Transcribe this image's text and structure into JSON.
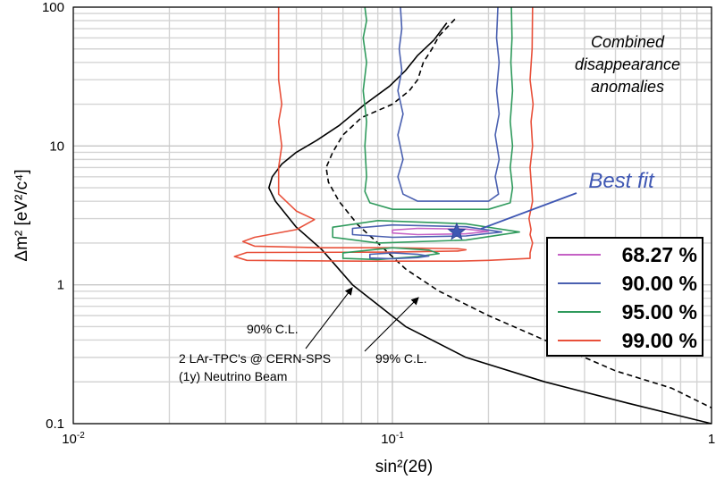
{
  "chart_data": {
    "type": "line",
    "xlabel": "sin²(2θ)",
    "ylabel": "Δm² [eV²/c⁴]",
    "x_scale": "log",
    "y_scale": "log",
    "xlim": [
      0.01,
      1
    ],
    "ylim": [
      0.1,
      100
    ],
    "grid": true,
    "x_ticks": [
      {
        "value": 0.01,
        "base": "10",
        "exp": "-2"
      },
      {
        "value": 0.1,
        "base": "10",
        "exp": "-1"
      },
      {
        "value": 1,
        "base": "1",
        "exp": ""
      }
    ],
    "y_ticks": [
      {
        "value": 0.1,
        "label": "0.1"
      },
      {
        "value": 1,
        "label": "1"
      },
      {
        "value": 10,
        "label": "10"
      },
      {
        "value": 100,
        "label": "100"
      }
    ],
    "annotations": {
      "combined": [
        "Combined",
        "disappearance",
        "anomalies"
      ],
      "best_fit": "Best fit",
      "cl90": "90% C.L.",
      "cl99": "99% C.L.",
      "exp": [
        "2 LAr-TPC's @ CERN-SPS",
        "(1y) Neutrino Beam"
      ]
    },
    "best_fit_point": {
      "x": 0.159,
      "y": 2.4
    },
    "legend": {
      "position": "right",
      "entries": [
        {
          "label": "68.27 %",
          "color": "#c561c5"
        },
        {
          "label": "90.00 %",
          "color": "#4a60b0"
        },
        {
          "label": "95.00 %",
          "color": "#2f9a5c"
        },
        {
          "label": "99.00 %",
          "color": "#e8503a"
        }
      ]
    },
    "series": [
      {
        "key": "sens90",
        "color": "#000000",
        "dash": false,
        "points": [
          [
            0.148,
            77
          ],
          [
            0.135,
            58
          ],
          [
            0.12,
            45
          ],
          [
            0.11,
            35
          ],
          [
            0.098,
            27
          ],
          [
            0.082,
            20
          ],
          [
            0.068,
            14
          ],
          [
            0.058,
            11
          ],
          [
            0.05,
            9
          ],
          [
            0.045,
            7.4
          ],
          [
            0.042,
            6
          ],
          [
            0.041,
            5
          ],
          [
            0.043,
            4
          ],
          [
            0.05,
            2.6
          ],
          [
            0.06,
            1.8
          ],
          [
            0.075,
            1
          ],
          [
            0.11,
            0.5
          ],
          [
            0.17,
            0.3
          ],
          [
            0.3,
            0.2
          ],
          [
            0.55,
            0.14
          ],
          [
            1,
            0.1
          ]
        ]
      },
      {
        "key": "sens99",
        "color": "#000000",
        "dash": true,
        "points": [
          [
            0.157,
            82
          ],
          [
            0.14,
            62
          ],
          [
            0.133,
            50
          ],
          [
            0.125,
            40
          ],
          [
            0.12,
            30
          ],
          [
            0.113,
            25
          ],
          [
            0.1,
            20
          ],
          [
            0.08,
            16
          ],
          [
            0.07,
            12
          ],
          [
            0.065,
            9
          ],
          [
            0.062,
            7
          ],
          [
            0.063,
            5.5
          ],
          [
            0.068,
            4
          ],
          [
            0.078,
            2.7
          ],
          [
            0.09,
            2
          ],
          [
            0.11,
            1.3
          ],
          [
            0.14,
            0.9
          ],
          [
            0.2,
            0.6
          ],
          [
            0.3,
            0.4
          ],
          [
            0.5,
            0.24
          ],
          [
            0.75,
            0.18
          ],
          [
            1,
            0.13
          ]
        ]
      },
      {
        "key": "c99",
        "color": "#e8503a",
        "dash": false,
        "points": [
          [
            0.044,
            100
          ],
          [
            0.044,
            30
          ],
          [
            0.045,
            20
          ],
          [
            0.044,
            15
          ],
          [
            0.045,
            10
          ],
          [
            0.044,
            7
          ],
          [
            0.044,
            4.5
          ],
          [
            0.05,
            3.4
          ],
          [
            0.057,
            2.95
          ],
          [
            0.05,
            2.5
          ],
          [
            0.037,
            2.2
          ],
          [
            0.034,
            2.05
          ],
          [
            0.037,
            1.9
          ],
          [
            0.06,
            1.85
          ],
          [
            0.1,
            1.85
          ],
          [
            0.16,
            1.82
          ],
          [
            0.17,
            1.79
          ],
          [
            0.16,
            1.75
          ],
          [
            0.1,
            1.72
          ],
          [
            0.035,
            1.71
          ],
          [
            0.032,
            1.6
          ],
          [
            0.035,
            1.5
          ],
          [
            0.08,
            1.48
          ],
          [
            0.16,
            1.48
          ],
          [
            0.2,
            1.5
          ],
          [
            0.27,
            1.55
          ],
          [
            0.27,
            1.7
          ],
          [
            0.275,
            2
          ],
          [
            0.27,
            2.3
          ],
          [
            0.272,
            2.5
          ],
          [
            0.268,
            3
          ],
          [
            0.275,
            4
          ],
          [
            0.27,
            7
          ],
          [
            0.275,
            10
          ],
          [
            0.272,
            15
          ],
          [
            0.276,
            20
          ],
          [
            0.27,
            30
          ],
          [
            0.274,
            50
          ],
          [
            0.275,
            100
          ]
        ]
      },
      {
        "key": "c95",
        "color": "#2f9a5c",
        "dash": false,
        "points": [
          [
            0.082,
            100
          ],
          [
            0.083,
            80
          ],
          [
            0.081,
            60
          ],
          [
            0.083,
            40
          ],
          [
            0.081,
            25
          ],
          [
            0.083,
            15
          ],
          [
            0.082,
            10
          ],
          [
            0.083,
            6
          ],
          [
            0.082,
            4.7
          ],
          [
            0.085,
            3.9
          ],
          [
            0.1,
            3.5
          ],
          [
            0.2,
            3.5
          ],
          [
            0.234,
            3.9
          ],
          [
            0.238,
            5
          ],
          [
            0.234,
            7
          ],
          [
            0.238,
            10
          ],
          [
            0.234,
            15
          ],
          [
            0.238,
            25
          ],
          [
            0.235,
            40
          ],
          [
            0.237,
            60
          ],
          [
            0.236,
            100
          ]
        ]
      },
      {
        "key": "c95-inner",
        "color": "#2f9a5c",
        "dash": false,
        "points": [
          [
            0.09,
            2.9
          ],
          [
            0.17,
            2.75
          ],
          [
            0.25,
            2.4
          ],
          [
            0.17,
            2.1
          ],
          [
            0.09,
            2.0
          ],
          [
            0.065,
            2.2
          ],
          [
            0.065,
            2.6
          ],
          [
            0.09,
            2.9
          ]
        ]
      },
      {
        "key": "c95-low",
        "color": "#2f9a5c",
        "dash": false,
        "points": [
          [
            0.1,
            1.85
          ],
          [
            0.13,
            1.78
          ],
          [
            0.14,
            1.68
          ],
          [
            0.12,
            1.6
          ],
          [
            0.09,
            1.52
          ],
          [
            0.07,
            1.55
          ],
          [
            0.07,
            1.7
          ],
          [
            0.1,
            1.85
          ]
        ]
      },
      {
        "key": "c90",
        "color": "#4a60b0",
        "dash": false,
        "points": [
          [
            0.106,
            100
          ],
          [
            0.107,
            70
          ],
          [
            0.105,
            50
          ],
          [
            0.107,
            35
          ],
          [
            0.104,
            25
          ],
          [
            0.108,
            17
          ],
          [
            0.104,
            12
          ],
          [
            0.108,
            8
          ],
          [
            0.104,
            6
          ],
          [
            0.108,
            4.5
          ],
          [
            0.12,
            4
          ],
          [
            0.2,
            4
          ],
          [
            0.215,
            4.5
          ],
          [
            0.21,
            6
          ],
          [
            0.216,
            8
          ],
          [
            0.21,
            12
          ],
          [
            0.216,
            17
          ],
          [
            0.212,
            25
          ],
          [
            0.216,
            40
          ],
          [
            0.212,
            60
          ],
          [
            0.214,
            100
          ]
        ]
      },
      {
        "key": "c90-inner",
        "color": "#4a60b0",
        "dash": false,
        "points": [
          [
            0.1,
            2.7
          ],
          [
            0.17,
            2.62
          ],
          [
            0.22,
            2.4
          ],
          [
            0.17,
            2.25
          ],
          [
            0.1,
            2.2
          ],
          [
            0.075,
            2.3
          ],
          [
            0.075,
            2.55
          ],
          [
            0.1,
            2.7
          ]
        ]
      },
      {
        "key": "c90-low",
        "color": "#4a60b0",
        "dash": false,
        "points": [
          [
            0.1,
            1.7
          ],
          [
            0.12,
            1.66
          ],
          [
            0.13,
            1.61
          ],
          [
            0.12,
            1.57
          ],
          [
            0.1,
            1.54
          ],
          [
            0.085,
            1.56
          ],
          [
            0.085,
            1.66
          ],
          [
            0.1,
            1.7
          ]
        ]
      },
      {
        "key": "c68",
        "color": "#c561c5",
        "dash": false,
        "points": [
          [
            0.12,
            2.55
          ],
          [
            0.17,
            2.52
          ],
          [
            0.2,
            2.42
          ],
          [
            0.17,
            2.33
          ],
          [
            0.12,
            2.3
          ],
          [
            0.1,
            2.36
          ],
          [
            0.1,
            2.48
          ],
          [
            0.12,
            2.55
          ]
        ]
      }
    ]
  }
}
